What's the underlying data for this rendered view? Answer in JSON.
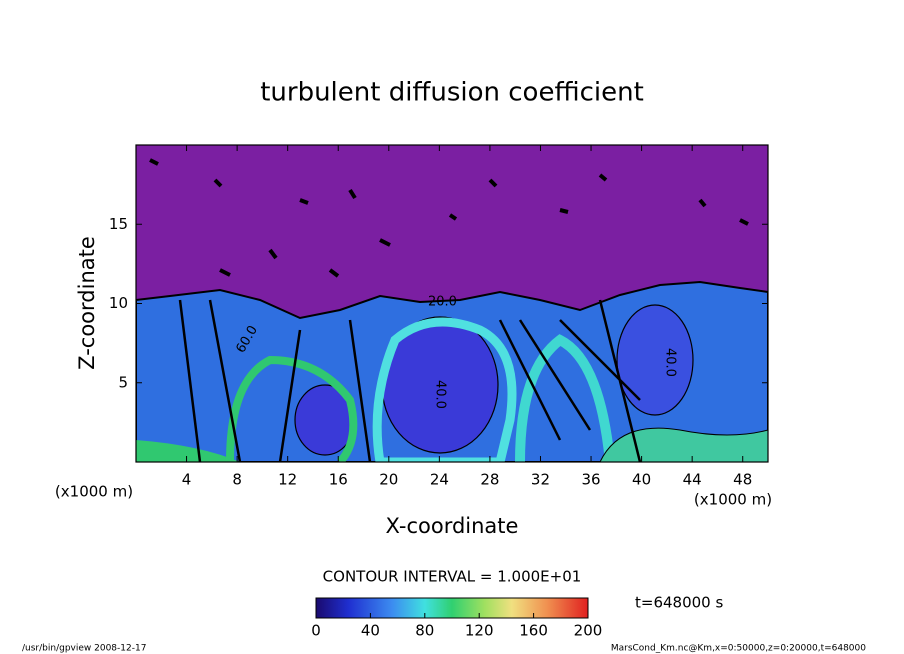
{
  "chart_data": {
    "type": "contour",
    "title": "turbulent diffusion coefficient",
    "x_label": "X-coordinate",
    "y_label": "Z-coordinate",
    "x_unit": "(x1000 m)",
    "y_unit": "(x1000 m)",
    "xlim": [
      0,
      50
    ],
    "ylim": [
      0,
      20
    ],
    "xticks": [
      4,
      8,
      12,
      16,
      20,
      24,
      28,
      32,
      36,
      40,
      44,
      48
    ],
    "yticks": [
      5,
      10,
      15
    ],
    "contour_labels": [
      "20.0",
      "60.0",
      "40.0",
      "40.0"
    ],
    "contour_interval": "CONTOUR INTERVAL = 1.000E+01",
    "colorbar": {
      "lim": [
        0,
        200
      ],
      "ticks": [
        0,
        40,
        80,
        120,
        160,
        200
      ]
    },
    "time_label": "t=648000 s"
  },
  "footer": {
    "left": "/usr/bin/gpview  2008-12-17",
    "right": "MarsCond_Km.nc@Km,x=0:50000,z=0:20000,t=648000"
  }
}
